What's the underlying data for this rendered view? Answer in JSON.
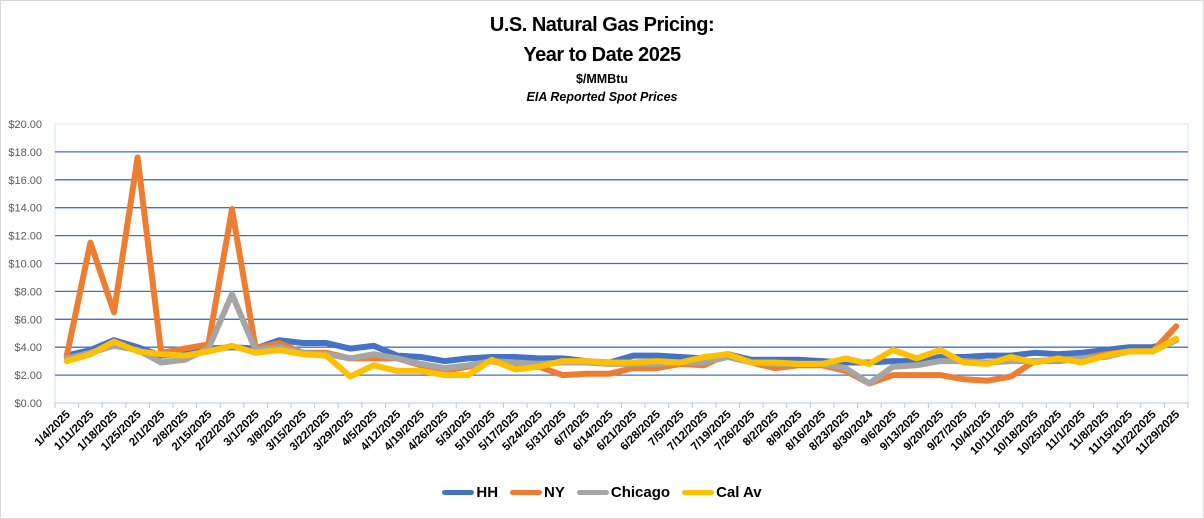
{
  "chart_data": {
    "type": "line",
    "title": "U.S. Natural Gas Pricing:",
    "subtitle": "Year to Date 2025",
    "units": "$/MMBtu",
    "note": "EIA Reported Spot Prices",
    "xlabel": "",
    "ylabel": "",
    "ylim": [
      0,
      20
    ],
    "yticks": [
      "$0.00",
      "$2.00",
      "$4.00",
      "$6.00",
      "$8.00",
      "$10.00",
      "$12.00",
      "$14.00",
      "$16.00",
      "$18.00",
      "$20.00"
    ],
    "grid": true,
    "legend_position": "bottom",
    "categories": [
      "1/4/2025",
      "1/11/2025",
      "1/18/2025",
      "1/25/2025",
      "2/1/2025",
      "2/8/2025",
      "2/15/2025",
      "2/22/2025",
      "3/1/2025",
      "3/8/2025",
      "3/15/2025",
      "3/22/2025",
      "3/29/2025",
      "4/5/2025",
      "4/12/2025",
      "4/19/2025",
      "4/26/2025",
      "5/3/2025",
      "5/10/2025",
      "5/17/2025",
      "5/24/2025",
      "5/31/2025",
      "6/7/2025",
      "6/14/2025",
      "6/21/2025",
      "6/28/2025",
      "7/5/2025",
      "7/12/2025",
      "7/19/2025",
      "7/26/2025",
      "8/2/2025",
      "8/9/2025",
      "8/16/2025",
      "8/23/2025",
      "8/30/2024",
      "9/6/2025",
      "9/13/2025",
      "9/20/2025",
      "9/27/2025",
      "10/4/2025",
      "10/11/2025",
      "10/18/2025",
      "10/25/2025",
      "11/1/2025",
      "11/8/2025",
      "11/15/2025",
      "11/22/2025",
      "11/29/2025"
    ],
    "series": [
      {
        "name": "HH",
        "color": "#4472C4",
        "values": [
          3.4,
          3.8,
          4.5,
          4.0,
          3.4,
          3.5,
          3.9,
          4.0,
          3.9,
          4.5,
          4.3,
          4.3,
          3.9,
          4.1,
          3.4,
          3.3,
          3.0,
          3.2,
          3.3,
          3.3,
          3.2,
          3.2,
          3.0,
          2.9,
          3.4,
          3.4,
          3.3,
          3.2,
          3.5,
          3.1,
          3.1,
          3.1,
          3.0,
          2.9,
          2.9,
          3.0,
          3.0,
          3.3,
          3.3,
          3.4,
          3.4,
          3.6,
          3.5,
          3.6,
          3.8,
          4.0,
          4.0,
          4.5
        ]
      },
      {
        "name": "NY",
        "color": "#ED7D31",
        "values": [
          3.4,
          11.5,
          6.5,
          17.6,
          3.6,
          3.9,
          4.2,
          13.9,
          3.9,
          4.3,
          3.6,
          3.6,
          3.2,
          3.2,
          3.2,
          2.7,
          2.3,
          2.6,
          3.0,
          2.6,
          2.6,
          2.0,
          2.1,
          2.1,
          2.5,
          2.5,
          2.8,
          2.7,
          3.5,
          2.9,
          2.5,
          2.7,
          2.7,
          2.3,
          1.4,
          2.0,
          2.0,
          2.0,
          1.7,
          1.6,
          1.9,
          3.0,
          3.0,
          3.2,
          3.5,
          3.7,
          3.7,
          5.5
        ]
      },
      {
        "name": "Chicago",
        "color": "#A5A5A5",
        "values": [
          3.2,
          3.6,
          4.1,
          3.8,
          2.9,
          3.1,
          3.9,
          7.8,
          3.8,
          4.0,
          3.6,
          3.5,
          3.2,
          3.5,
          3.2,
          2.8,
          2.5,
          2.7,
          3.0,
          2.9,
          2.8,
          2.9,
          2.9,
          2.8,
          2.8,
          2.8,
          2.9,
          2.9,
          3.3,
          2.9,
          2.8,
          2.8,
          2.8,
          2.5,
          1.4,
          2.6,
          2.7,
          3.0,
          3.0,
          2.9,
          3.0,
          3.0,
          3.1,
          3.2,
          3.3,
          3.7,
          3.7,
          4.5
        ]
      },
      {
        "name": "Cal Av",
        "color": "#FFC000",
        "values": [
          3.0,
          3.5,
          4.4,
          3.7,
          3.5,
          3.4,
          3.7,
          4.1,
          3.6,
          3.8,
          3.5,
          3.4,
          1.9,
          2.7,
          2.3,
          2.3,
          2.0,
          2.0,
          3.1,
          2.4,
          2.6,
          3.0,
          3.0,
          2.9,
          2.9,
          3.0,
          2.9,
          3.3,
          3.5,
          2.9,
          2.9,
          2.8,
          2.8,
          3.2,
          2.8,
          3.8,
          3.2,
          3.8,
          2.9,
          2.8,
          3.3,
          2.9,
          3.2,
          2.9,
          3.4,
          3.7,
          3.7,
          4.6
        ]
      }
    ]
  }
}
